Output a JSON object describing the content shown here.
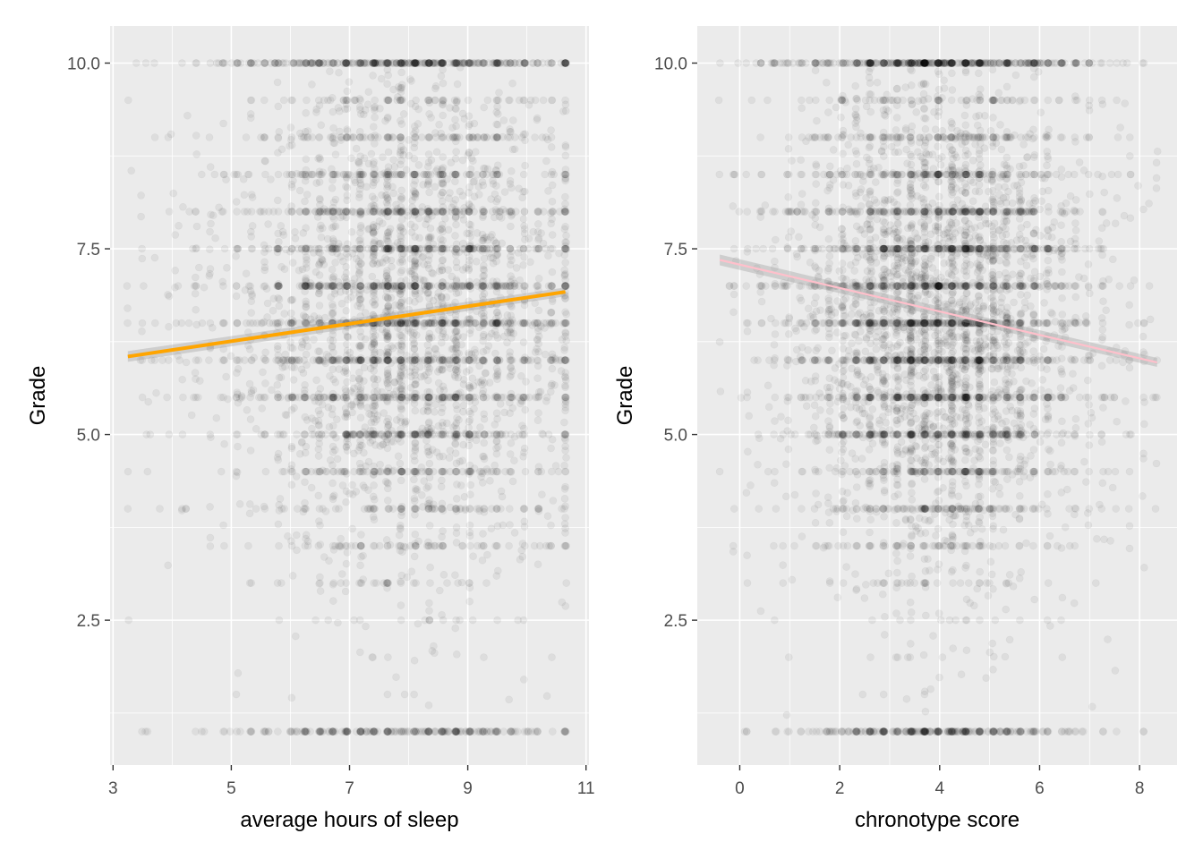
{
  "chart_data": [
    {
      "type": "scatter",
      "title": "",
      "xlabel": "average hours of sleep",
      "ylabel": "Grade",
      "xlim": [
        2.95,
        11.05
      ],
      "ylim": [
        0.55,
        10.5
      ],
      "x_ticks": [
        3,
        5,
        7,
        9,
        11
      ],
      "x_tick_labels": [
        "3",
        "5",
        "7",
        "9",
        "11"
      ],
      "y_ticks": [
        2.5,
        5.0,
        7.5,
        10.0
      ],
      "y_tick_labels": [
        "2.5",
        "5.0",
        "7.5",
        "10.0"
      ],
      "grid": true,
      "point_color": "#000000",
      "point_alpha": 0.06,
      "fit_line": {
        "color": "#FFA500",
        "x": [
          3.25,
          10.65
        ],
        "y": [
          6.05,
          6.92
        ]
      },
      "series": [
        {
          "x_range": [
            3.25,
            10.65
          ],
          "x_center": 8.0,
          "x_spread": 1.1,
          "y_range": [
            1.0,
            10.0
          ],
          "y_center": 6.6,
          "y_spread": 1.7,
          "approx_points": 5000
        }
      ]
    },
    {
      "type": "scatter",
      "title": "",
      "xlabel": "chronotype score",
      "ylabel": "Grade",
      "xlim": [
        -0.85,
        8.75
      ],
      "ylim": [
        0.55,
        10.5
      ],
      "x_ticks": [
        0,
        2,
        4,
        6,
        8
      ],
      "x_tick_labels": [
        "0",
        "2",
        "4",
        "6",
        "8"
      ],
      "y_ticks": [
        2.5,
        5.0,
        7.5,
        10.0
      ],
      "y_tick_labels": [
        "2.5",
        "5.0",
        "7.5",
        "10.0"
      ],
      "grid": true,
      "point_color": "#000000",
      "point_alpha": 0.06,
      "fit_line": {
        "color": "#FFC0CB",
        "x": [
          -0.4,
          8.35
        ],
        "y": [
          7.35,
          5.97
        ]
      },
      "series": [
        {
          "x_range": [
            -0.4,
            8.35
          ],
          "x_center": 4.0,
          "x_spread": 1.1,
          "y_range": [
            1.0,
            10.0
          ],
          "y_center": 6.6,
          "y_spread": 1.7,
          "approx_points": 6000
        }
      ]
    }
  ]
}
